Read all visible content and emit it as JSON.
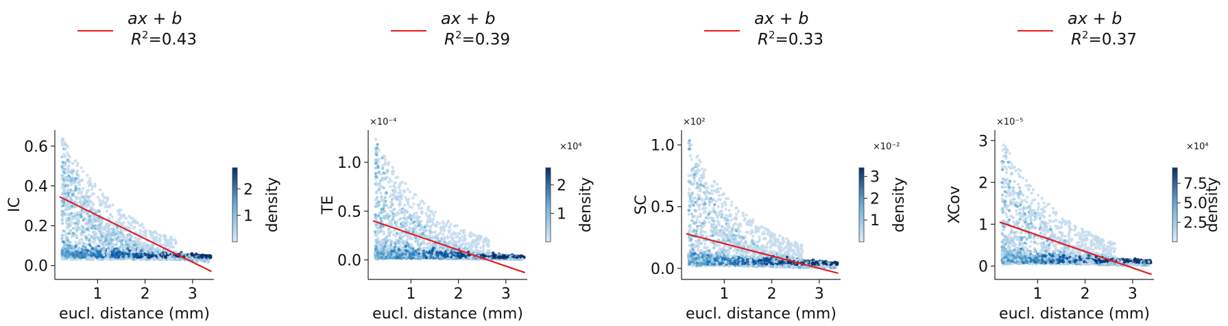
{
  "chart_data": [
    {
      "type": "scatter",
      "legend": {
        "label": "ax + b",
        "r2_label": "R",
        "r2_sup": "2",
        "r2_value": "=0.43",
        "color": "#e41a1c"
      },
      "xlabel": "eucl. distance (mm)",
      "ylabel": "IC",
      "xlim": [
        0.1,
        3.45
      ],
      "ylim": [
        -0.07,
        0.68
      ],
      "xticks": [
        1,
        2,
        3
      ],
      "yticks": [
        0.0,
        0.2,
        0.4,
        0.6
      ],
      "ytick_labels": [
        "0.0",
        "0.2",
        "0.4",
        "0.6"
      ],
      "y_multiplier": "",
      "fit_line": {
        "x": [
          0.2,
          3.4
        ],
        "y": [
          0.345,
          -0.03
        ]
      },
      "colorbar": {
        "label": "density",
        "ticks": [
          1,
          2
        ],
        "tick_labels": [
          "1",
          "2"
        ],
        "max": 2.8,
        "multiplier": ""
      },
      "cloud": {
        "ymax": 0.64,
        "top_y": 0.64,
        "base_y": 0.03,
        "dense_y": 0.04,
        "near_peak": 0.38
      }
    },
    {
      "type": "scatter",
      "legend": {
        "label": "ax + b",
        "r2_label": "R",
        "r2_sup": "2",
        "r2_value": "=0.39",
        "color": "#e41a1c"
      },
      "xlabel": "eucl. distance (mm)",
      "ylabel": "TE",
      "xlim": [
        0.1,
        3.45
      ],
      "ylim": [
        -0.2,
        1.33
      ],
      "xticks": [
        1,
        2,
        3
      ],
      "yticks": [
        0.0,
        0.5,
        1.0
      ],
      "ytick_labels": [
        "0.0",
        "0.5",
        "1.0"
      ],
      "y_multiplier": "×10⁻⁴",
      "fit_line": {
        "x": [
          0.2,
          3.4
        ],
        "y": [
          0.4,
          -0.13
        ]
      },
      "colorbar": {
        "label": "density",
        "ticks": [
          1,
          2
        ],
        "tick_labels": [
          "1",
          "2"
        ],
        "max": 2.6,
        "multiplier": "×10⁴"
      },
      "cloud": {
        "ymax": 1.25,
        "top_y": 1.25,
        "base_y": 0.01,
        "dense_y": 0.02,
        "near_peak": 0.1
      }
    },
    {
      "type": "scatter",
      "legend": {
        "label": "ax + b",
        "r2_label": "R",
        "r2_sup": "2",
        "r2_value": "=0.33",
        "color": "#e41a1c"
      },
      "xlabel": "eucl. distance (mm)",
      "ylabel": "SC",
      "xlim": [
        0.1,
        3.45
      ],
      "ylim": [
        -0.09,
        1.12
      ],
      "xticks": [
        1,
        2,
        3
      ],
      "yticks": [
        0.0,
        0.5,
        1.0
      ],
      "ytick_labels": [
        "0.0",
        "0.5",
        "1.0"
      ],
      "y_multiplier": "×10²",
      "fit_line": {
        "x": [
          0.2,
          3.4
        ],
        "y": [
          0.28,
          -0.04
        ]
      },
      "colorbar": {
        "label": "density",
        "ticks": [
          1,
          2,
          3
        ],
        "tick_labels": [
          "1",
          "2",
          "3"
        ],
        "max": 3.4,
        "multiplier": "×10⁻²"
      },
      "cloud": {
        "ymax": 1.04,
        "top_y": 1.04,
        "base_y": 0.02,
        "dense_y": 0.03,
        "near_peak": 0.08
      }
    },
    {
      "type": "scatter",
      "legend": {
        "label": "ax + b",
        "r2_label": "R",
        "r2_sup": "2",
        "r2_value": "=0.37",
        "color": "#e41a1c"
      },
      "xlabel": "eucl. distance (mm)",
      "ylabel": "XCov",
      "xlim": [
        0.1,
        3.45
      ],
      "ylim": [
        -0.32,
        3.25
      ],
      "xticks": [
        1,
        2,
        3
      ],
      "yticks": [
        0,
        1,
        2,
        3
      ],
      "ytick_labels": [
        "0",
        "1",
        "2",
        "3"
      ],
      "y_multiplier": "×10⁻⁵",
      "fit_line": {
        "x": [
          0.2,
          3.4
        ],
        "y": [
          1.05,
          -0.2
        ]
      },
      "colorbar": {
        "label": "density",
        "ticks": [
          2.5,
          5.0,
          7.5
        ],
        "tick_labels": [
          "2.5",
          "5.0",
          "7.5"
        ],
        "max": 9.5,
        "multiplier": "×10⁴"
      },
      "cloud": {
        "ymax": 3.0,
        "top_y": 3.0,
        "base_y": 0.05,
        "dense_y": 0.08,
        "near_peak": 0.3
      }
    }
  ]
}
